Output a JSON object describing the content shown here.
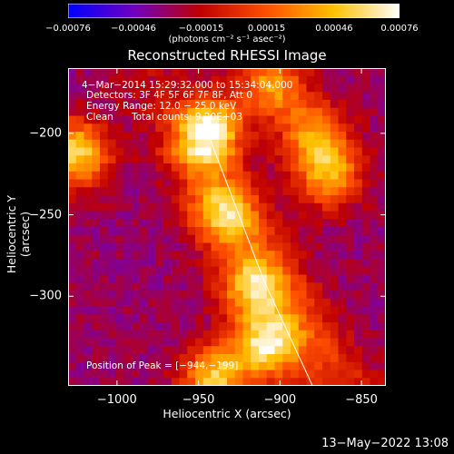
{
  "chart_data": {
    "type": "heatmap",
    "title": "Reconstructed RHESSI Image",
    "xlabel": "Heliocentric X (arcsec)",
    "ylabel": "Heliocentric Y (arcsec)",
    "xlim": [
      -1030,
      -835
    ],
    "ylim": [
      -355,
      -160
    ],
    "x_ticks": [
      -1000,
      -950,
      -900,
      -850
    ],
    "x_tick_labels": [
      "−1000",
      "−950",
      "−900",
      "−850"
    ],
    "y_ticks": [
      -200,
      -250,
      -300
    ],
    "y_tick_labels": [
      "−200",
      "−250",
      "−300"
    ],
    "colorbar": {
      "min": -0.00076,
      "max": 0.00076,
      "tick_values": [
        -0.00076,
        -0.00046,
        -0.00015,
        0.00015,
        0.00046,
        0.00076
      ],
      "tick_labels": [
        "−0.00076",
        "−0.00046",
        "−0.00015",
        "0.00015",
        "0.00046",
        "0.00076"
      ],
      "units_label": "(photons cm⁻² s⁻¹ asec⁻²)",
      "colors": [
        "#0000ff",
        "#7000c0",
        "#c00000",
        "#ff5000",
        "#ffc000",
        "#ffffff"
      ]
    },
    "annotations": {
      "time_range": "4−Mar−2014 15:29:32.000 to 15:34:04.000",
      "detectors": "Detectors: 3F 4F 5F 6F 7F 8F, Att 0",
      "energy": "Energy Range: 12.0 − 25.0 keV",
      "method": "Clean",
      "total_counts": "Total counts: 9.20E+03",
      "peak": "Position of Peak = [−944,−199]"
    },
    "limb_line": {
      "x": [
        -948,
        -910,
        -880
      ],
      "y": [
        -190,
        -290,
        -355
      ]
    },
    "bright_sources": [
      {
        "x": -944,
        "y": -199,
        "intensity": 0.00076
      },
      {
        "x": -1025,
        "y": -212,
        "intensity": 0.00055
      },
      {
        "x": -908,
        "y": -330,
        "intensity": 0.0006
      },
      {
        "x": -940,
        "y": -350,
        "intensity": 0.0005
      },
      {
        "x": -917,
        "y": -295,
        "intensity": 0.0004
      },
      {
        "x": -870,
        "y": -225,
        "intensity": 0.0004
      },
      {
        "x": -905,
        "y": -170,
        "intensity": 0.00035
      },
      {
        "x": -880,
        "y": -200,
        "intensity": 0.0003
      },
      {
        "x": -935,
        "y": -250,
        "intensity": 0.00032
      }
    ]
  },
  "footer": {
    "datestamp": "13−May−2022 13:08"
  }
}
